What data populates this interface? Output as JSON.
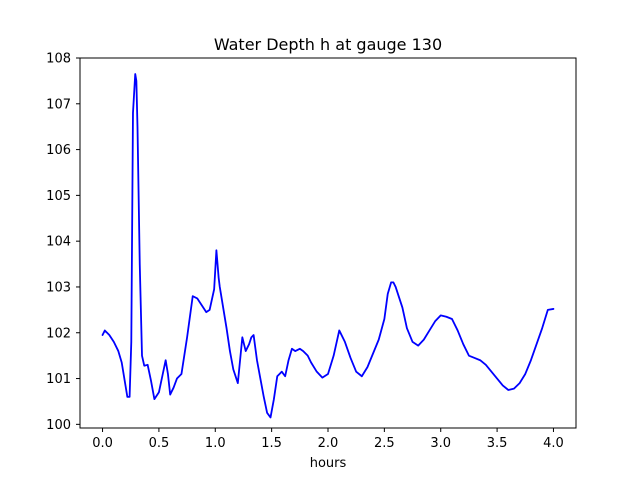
{
  "chart_data": {
    "type": "line",
    "title": "Water Depth h at gauge 130",
    "xlabel": "hours",
    "ylabel": "",
    "xlim": [
      -0.2,
      4.2
    ],
    "ylim": [
      99.92,
      108.0
    ],
    "x_ticks": [
      0.0,
      0.5,
      1.0,
      1.5,
      2.0,
      2.5,
      3.0,
      3.5,
      4.0
    ],
    "x_tick_labels": [
      "0.0",
      "0.5",
      "1.0",
      "1.5",
      "2.0",
      "2.5",
      "3.0",
      "3.5",
      "4.0"
    ],
    "y_ticks": [
      100,
      101,
      102,
      103,
      104,
      105,
      106,
      107,
      108
    ],
    "y_tick_labels": [
      "100",
      "101",
      "102",
      "103",
      "104",
      "105",
      "106",
      "107",
      "108"
    ],
    "grid": false,
    "series": [
      {
        "color": "#0000ff",
        "x": [
          0.0,
          0.02,
          0.06,
          0.1,
          0.14,
          0.17,
          0.2,
          0.22,
          0.24,
          0.255,
          0.27,
          0.29,
          0.3,
          0.31,
          0.33,
          0.35,
          0.37,
          0.4,
          0.43,
          0.46,
          0.5,
          0.53,
          0.56,
          0.58,
          0.6,
          0.63,
          0.66,
          0.7,
          0.75,
          0.8,
          0.84,
          0.88,
          0.92,
          0.95,
          0.99,
          1.01,
          1.03,
          1.04,
          1.05,
          1.07,
          1.1,
          1.13,
          1.16,
          1.2,
          1.24,
          1.27,
          1.3,
          1.32,
          1.34,
          1.37,
          1.4,
          1.43,
          1.46,
          1.49,
          1.52,
          1.55,
          1.57,
          1.59,
          1.62,
          1.65,
          1.68,
          1.71,
          1.75,
          1.78,
          1.82,
          1.85,
          1.9,
          1.95,
          2.0,
          2.05,
          2.1,
          2.15,
          2.2,
          2.25,
          2.3,
          2.35,
          2.4,
          2.45,
          2.5,
          2.53,
          2.56,
          2.58,
          2.6,
          2.62,
          2.66,
          2.7,
          2.75,
          2.8,
          2.85,
          2.9,
          2.95,
          3.0,
          3.05,
          3.1,
          3.15,
          3.2,
          3.25,
          3.3,
          3.35,
          3.4,
          3.45,
          3.5,
          3.55,
          3.6,
          3.65,
          3.7,
          3.75,
          3.8,
          3.85,
          3.9,
          3.95,
          4.0
        ],
        "y": [
          101.95,
          102.05,
          101.95,
          101.8,
          101.6,
          101.35,
          100.9,
          100.6,
          100.6,
          101.8,
          106.8,
          107.65,
          107.5,
          106.5,
          103.5,
          101.5,
          101.28,
          101.3,
          100.95,
          100.55,
          100.7,
          101.05,
          101.4,
          101.1,
          100.65,
          100.8,
          101.0,
          101.1,
          101.9,
          102.8,
          102.75,
          102.6,
          102.45,
          102.5,
          102.95,
          103.8,
          103.2,
          103.0,
          102.85,
          102.55,
          102.1,
          101.6,
          101.2,
          100.9,
          101.9,
          101.6,
          101.75,
          101.9,
          101.95,
          101.4,
          101.0,
          100.6,
          100.25,
          100.15,
          100.55,
          101.05,
          101.1,
          101.15,
          101.05,
          101.4,
          101.65,
          101.6,
          101.65,
          101.6,
          101.5,
          101.35,
          101.15,
          101.02,
          101.1,
          101.5,
          102.05,
          101.8,
          101.45,
          101.15,
          101.05,
          101.25,
          101.55,
          101.85,
          102.3,
          102.85,
          103.1,
          103.1,
          103.0,
          102.85,
          102.55,
          102.1,
          101.8,
          101.72,
          101.85,
          102.05,
          102.25,
          102.38,
          102.35,
          102.3,
          102.05,
          101.75,
          101.5,
          101.45,
          101.4,
          101.3,
          101.15,
          101.0,
          100.85,
          100.75,
          100.78,
          100.9,
          101.1,
          101.4,
          101.75,
          102.1,
          102.5,
          102.52
        ]
      }
    ]
  }
}
